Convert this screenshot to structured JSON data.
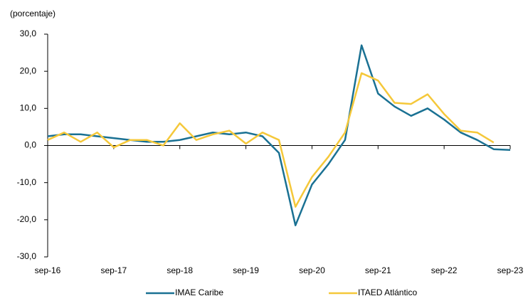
{
  "chart_data": {
    "type": "line",
    "y_axis_label": "(porcentaje)",
    "categories": [
      "sep-16",
      null,
      null,
      null,
      "sep-17",
      null,
      null,
      null,
      "sep-18",
      null,
      null,
      null,
      "sep-19",
      null,
      null,
      null,
      "sep-20",
      null,
      null,
      null,
      "sep-21",
      null,
      null,
      null,
      "sep-22",
      null,
      null,
      null,
      "sep-23"
    ],
    "series": [
      {
        "name": "IMAE Caribe",
        "color": "#1a7193",
        "values": [
          2.5,
          3,
          3,
          2.5,
          2,
          1.5,
          1,
          1,
          1.5,
          2.5,
          3.5,
          3,
          3.5,
          2.5,
          -2,
          -21.5,
          -10.5,
          -5,
          1.5,
          27,
          14,
          10.5,
          8,
          10,
          7,
          3.5,
          1.5,
          -1,
          -1.2
        ]
      },
      {
        "name": "ITAED Atlántico",
        "color": "#f5c83a",
        "values": [
          1.5,
          3.5,
          1,
          3.5,
          -0.5,
          1.5,
          1.5,
          0,
          6,
          1.5,
          3,
          4,
          0.5,
          3.5,
          1.5,
          -16.5,
          -8.5,
          -3,
          3.5,
          19.5,
          17.5,
          11.5,
          11.2,
          13.8,
          8.5,
          4,
          3.5,
          0.8,
          null
        ]
      }
    ],
    "ylim": [
      -30,
      30
    ],
    "yticks": [
      {
        "value": -30,
        "label": "-30,0"
      },
      {
        "value": -20,
        "label": "-20,0"
      },
      {
        "value": -10,
        "label": "-10,0"
      },
      {
        "value": 0,
        "label": "0,0"
      },
      {
        "value": 10,
        "label": "10,0"
      },
      {
        "value": 20,
        "label": "20,0"
      },
      {
        "value": 30,
        "label": "30,0"
      }
    ],
    "legend": "bottom"
  }
}
